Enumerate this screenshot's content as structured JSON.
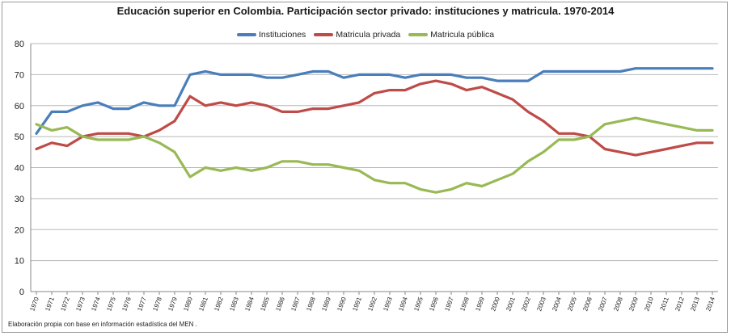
{
  "chart_data": {
    "type": "line",
    "title": "Educación superior en Colombia. Participación sector privado: instituciones y matricula. 1970-2014",
    "footer": "Elaboración propia con base en información estadística del MEN .",
    "xlabel": "",
    "ylabel": "",
    "ylim": [
      0,
      80
    ],
    "yticks": [
      0,
      10,
      20,
      30,
      40,
      50,
      60,
      70,
      80
    ],
    "grid": true,
    "legend_position": "top",
    "x": [
      "1970",
      "1971",
      "1972",
      "1973",
      "1974",
      "1975",
      "1976",
      "1977",
      "1978",
      "1979",
      "1980",
      "1981",
      "1982",
      "1983",
      "1984",
      "1985",
      "1986",
      "1987",
      "1988",
      "1989",
      "1990",
      "1991",
      "1992",
      "1993",
      "1994",
      "1995",
      "1996",
      "1997",
      "1998",
      "1999",
      "2000",
      "2001",
      "2002",
      "2003",
      "2004",
      "2005",
      "2006",
      "2007",
      "2008",
      "2009",
      "2010",
      "2011",
      "2012",
      "2013",
      "2014"
    ],
    "series": [
      {
        "name": "Instituciones",
        "color": "#4a7ebb",
        "values": [
          51,
          58,
          58,
          60,
          61,
          59,
          59,
          61,
          60,
          60,
          70,
          71,
          70,
          70,
          70,
          69,
          69,
          70,
          71,
          71,
          69,
          70,
          70,
          70,
          69,
          70,
          70,
          70,
          69,
          69,
          68,
          68,
          68,
          71,
          71,
          71,
          71,
          71,
          71,
          72,
          72,
          72,
          72,
          72,
          72
        ]
      },
      {
        "name": "Matricula privada",
        "color": "#be4b48",
        "values": [
          46,
          48,
          47,
          50,
          51,
          51,
          51,
          50,
          52,
          55,
          63,
          60,
          61,
          60,
          61,
          60,
          58,
          58,
          59,
          59,
          60,
          61,
          64,
          65,
          65,
          67,
          68,
          67,
          65,
          66,
          64,
          62,
          58,
          55,
          51,
          51,
          50,
          46,
          45,
          44,
          45,
          46,
          47,
          48,
          48
        ]
      },
      {
        "name": "Matricula pública",
        "color": "#98b954",
        "values": [
          54,
          52,
          53,
          50,
          49,
          49,
          49,
          50,
          48,
          45,
          37,
          40,
          39,
          40,
          39,
          40,
          42,
          42,
          41,
          41,
          40,
          39,
          36,
          35,
          35,
          33,
          32,
          33,
          35,
          34,
          36,
          38,
          42,
          45,
          49,
          49,
          50,
          54,
          55,
          56,
          55,
          54,
          53,
          52,
          52
        ]
      }
    ]
  }
}
